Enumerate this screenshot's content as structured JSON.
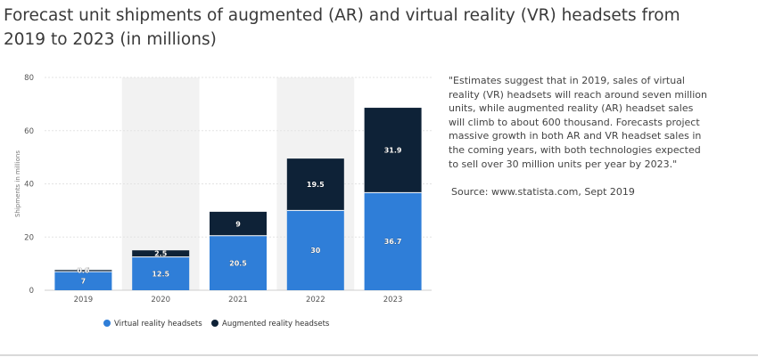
{
  "page": {
    "title": "Forecast unit shipments of augmented (AR) and virtual reality (VR) headsets from 2019 to 2023 (in millions)",
    "note": "\"Estimates suggest that in 2019, sales of virtual reality (VR) headsets will reach around seven million units, while augmented reality (AR) headset sales will climb to about 600 thousand. Forecasts project massive growth in both AR and VR headset sales in the coming years, with both technologies expected to sell over 30 million units per year by 2023.\"",
    "source": "Source: www.statista.com, Sept 2019"
  },
  "chart_data": {
    "type": "bar",
    "stacked": true,
    "categories": [
      "2019",
      "2020",
      "2021",
      "2022",
      "2023"
    ],
    "series": [
      {
        "name": "Virtual reality headsets",
        "values": [
          7,
          12.5,
          20.5,
          30,
          36.7
        ],
        "color": "#2f7ed8"
      },
      {
        "name": "Augmented reality headsets",
        "values": [
          0.6,
          2.5,
          9,
          19.5,
          31.9
        ],
        "color": "#0e2237"
      }
    ],
    "data_labels": {
      "Virtual reality headsets": [
        "7",
        "12.5",
        "20.5",
        "30",
        "36.7"
      ],
      "Augmented reality headsets": [
        "0.6",
        "2.5",
        "9",
        "19.5",
        "31.9"
      ]
    },
    "ylabel": "Shipments in millions",
    "xlabel": "",
    "ylim": [
      0,
      80
    ],
    "yticks": [
      0,
      20,
      40,
      60,
      80
    ],
    "grid": true,
    "legend": "bottom"
  }
}
